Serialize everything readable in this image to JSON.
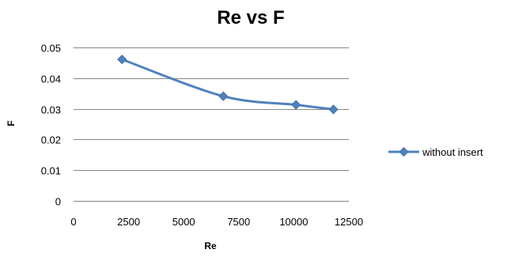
{
  "chart_data": {
    "type": "line",
    "title": "Re vs F",
    "xlabel": "Re",
    "ylabel": "F",
    "xlim": [
      0,
      12500
    ],
    "ylim": [
      0,
      0.05
    ],
    "x_ticks": [
      "0",
      "2500",
      "5000",
      "7500",
      "10000",
      "12500"
    ],
    "y_ticks": [
      "0",
      "0.01",
      "0.02",
      "0.03",
      "0.04",
      "0.05"
    ],
    "grid": "horizontal",
    "legend_position": "right",
    "series": [
      {
        "name": "without insert",
        "color": "#4F81BD",
        "marker": "diamond",
        "x": [
          2200,
          6800,
          10100,
          11800
        ],
        "y": [
          0.0461,
          0.0341,
          0.0313,
          0.0298
        ]
      }
    ]
  }
}
